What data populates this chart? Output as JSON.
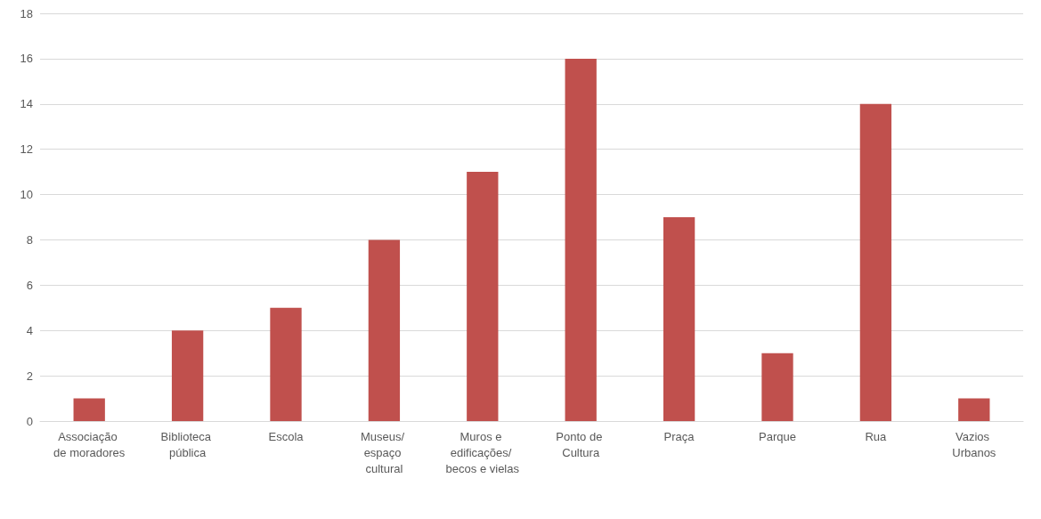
{
  "chart_data": {
    "type": "bar",
    "categories": [
      "Associação de moradores",
      "Biblioteca pública",
      "Escola",
      "Museus/ espaço cultural",
      "Muros e edificações/ becos e vielas",
      "Ponto de Cultura",
      "Praça",
      "Parque",
      "Rua",
      "Vazios Urbanos"
    ],
    "values": [
      1,
      4,
      5,
      8,
      11,
      16,
      9,
      3,
      14,
      1
    ],
    "color": "#c0504d",
    "ylim": [
      0,
      18
    ],
    "yticks": [
      0,
      2,
      4,
      6,
      8,
      10,
      12,
      14,
      16,
      18
    ],
    "grid": true
  }
}
